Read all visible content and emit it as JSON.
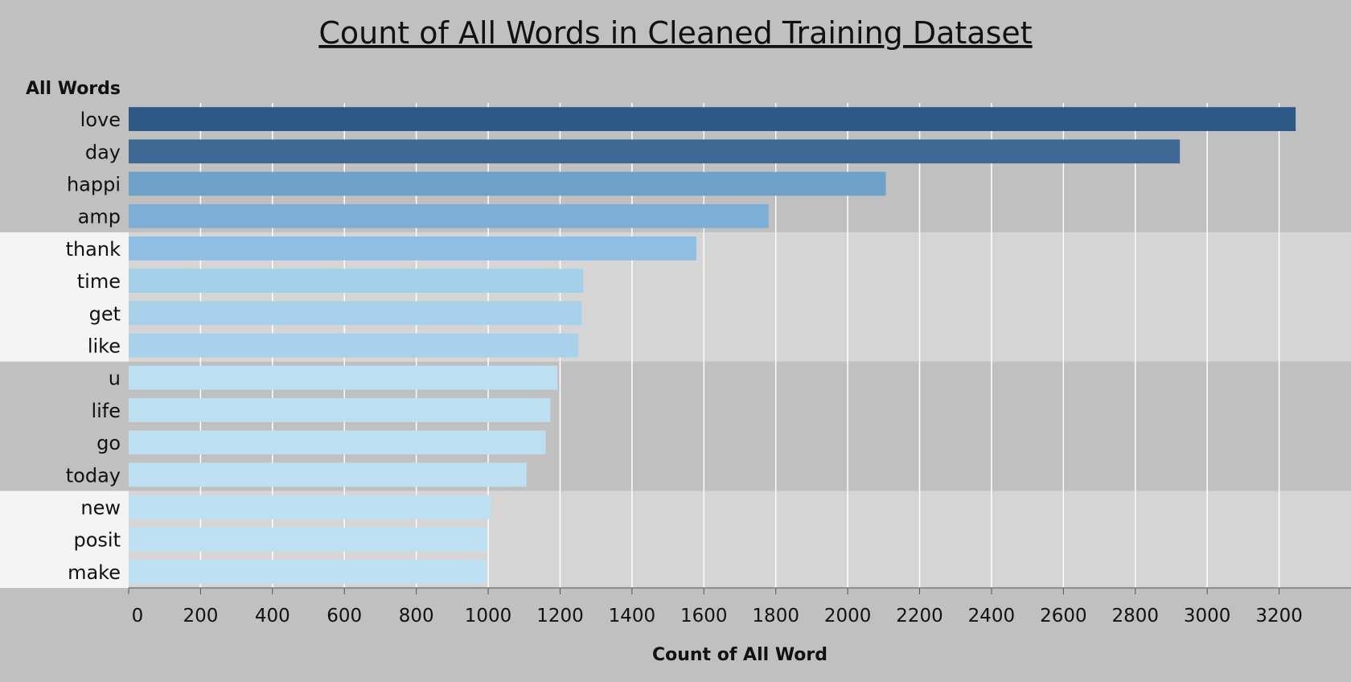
{
  "chart_data": {
    "type": "bar",
    "orientation": "horizontal",
    "title": "Count of All Words in Cleaned Training Dataset",
    "ylabel": "All Words",
    "xlabel": "Count of All Word",
    "categories": [
      "love",
      "day",
      "happi",
      "amp",
      "thank",
      "time",
      "get",
      "like",
      "u",
      "life",
      "go",
      "today",
      "new",
      "posit",
      "make"
    ],
    "values": [
      3246,
      2924,
      2106,
      1780,
      1579,
      1264,
      1260,
      1251,
      1193,
      1173,
      1160,
      1107,
      1006,
      998,
      996
    ],
    "xlim": [
      0,
      3400
    ],
    "xticks": [
      0,
      200,
      400,
      600,
      800,
      1000,
      1200,
      1400,
      1600,
      1800,
      2000,
      2200,
      2400,
      2600,
      2800,
      3000,
      3200
    ],
    "grid": true,
    "legend": "none",
    "colors": {
      "background": "#c0c0c0",
      "band_light": "#d5d5d5",
      "band_label_light": "#f4f4f4",
      "gridline": "#ffffff",
      "text": "#111111",
      "bars": [
        "#2b5884",
        "#3c6893",
        "#6ea1c8",
        "#7caed6",
        "#8fbfe2",
        "#a5d0ea",
        "#a7d1eb",
        "#a8d2eb",
        "#bcdff1",
        "#bcdff1",
        "#bcdff1",
        "#bde0f2",
        "#bde0f2",
        "#bde0f2",
        "#bde0f2"
      ]
    }
  }
}
